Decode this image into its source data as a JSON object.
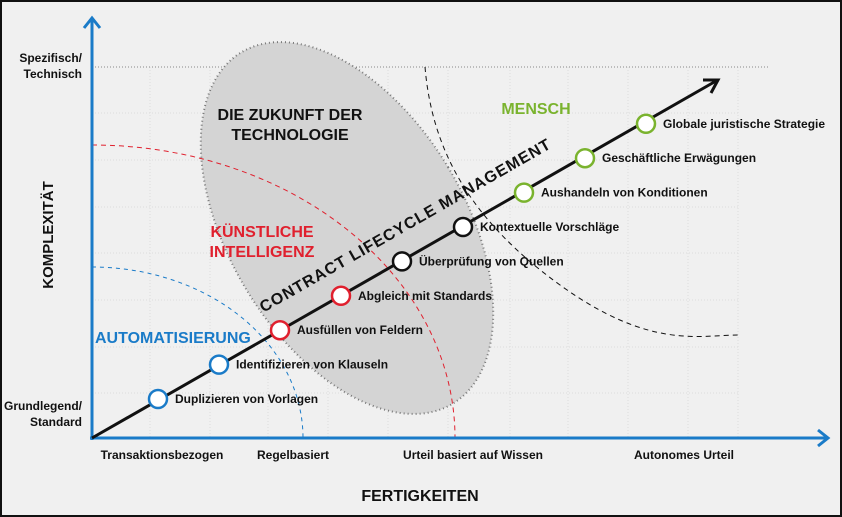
{
  "y_axis": {
    "label": "KOMPLEXITÄT",
    "top_label": [
      "Spezifisch/",
      "Technisch"
    ],
    "bottom_label": [
      "Grundlegend/",
      "Standard"
    ]
  },
  "x_axis": {
    "label": "FERTIGKEITEN",
    "ticks": [
      "Transaktionsbezogen",
      "Regelbasiert",
      "Urteil basiert auf Wissen",
      "Autonomes Urteil"
    ]
  },
  "regions": {
    "future": [
      "DIE ZUKUNFT DER",
      "TECHNOLOGIE"
    ],
    "human": "MENSCH",
    "ai": [
      "KÜNSTLICHE",
      "INTELLIGENZ"
    ],
    "automation": "AUTOMATISIERUNG"
  },
  "diagonal_label": "CONTRACT LIFECYCLE MANAGEMENT",
  "steps": [
    {
      "label": "Duplizieren von Vorlagen",
      "color": "#1a7bc8"
    },
    {
      "label": "Identifizieren von Klauseln",
      "color": "#1a7bc8"
    },
    {
      "label": "Ausfüllen von Feldern",
      "color": "#e0202e"
    },
    {
      "label": "Abgleich mit Standards",
      "color": "#e0202e"
    },
    {
      "label": "Überprüfung von Quellen",
      "color": "#111111"
    },
    {
      "label": "Kontextuelle Vorschläge",
      "color": "#111111"
    },
    {
      "label": "Aushandeln von Konditionen",
      "color": "#7ab32e"
    },
    {
      "label": "Geschäftliche Erwägungen",
      "color": "#7ab32e"
    },
    {
      "label": "Globale juristische Strategie",
      "color": "#7ab32e"
    }
  ],
  "colors": {
    "axis": "#1a7bc8",
    "ai": "#e0202e",
    "human": "#7ab32e",
    "automation": "#1a7bc8"
  }
}
